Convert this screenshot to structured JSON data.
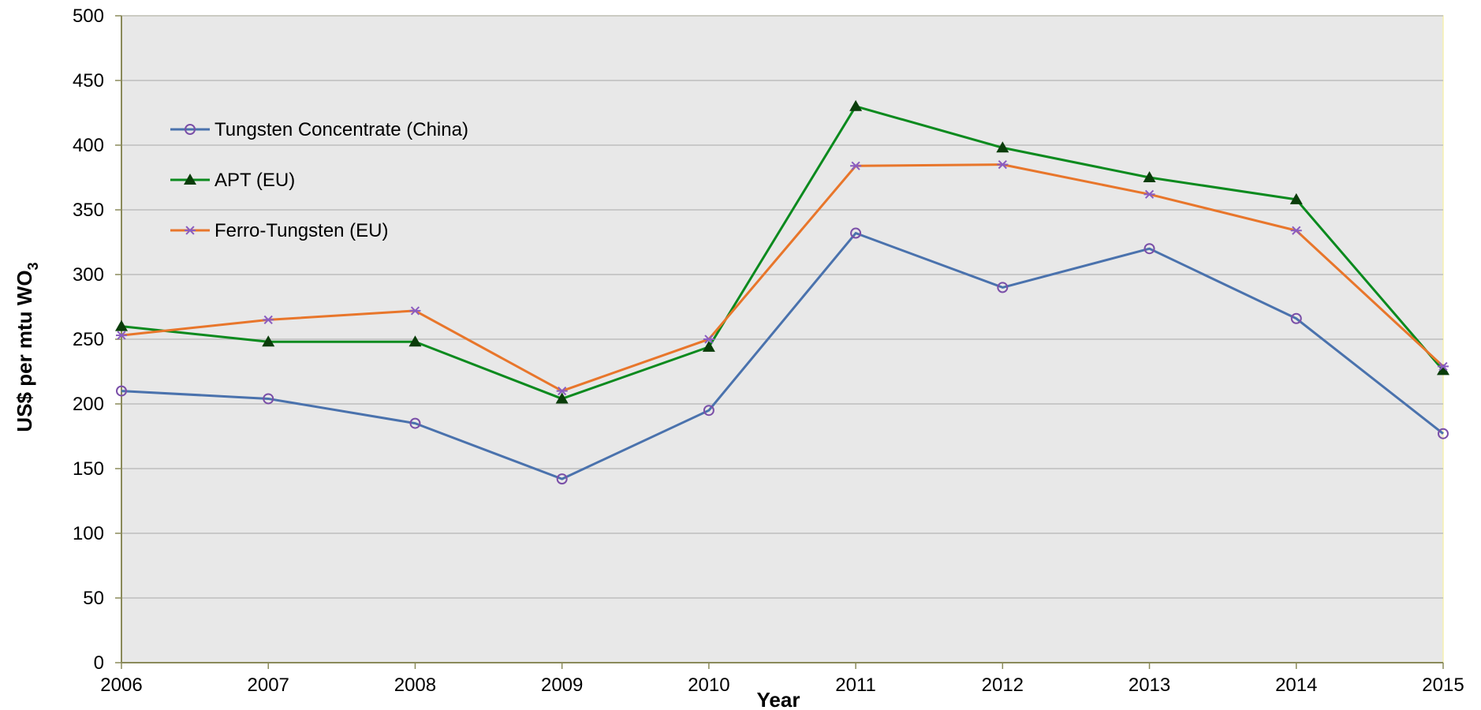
{
  "chart_data": {
    "type": "line",
    "title": "",
    "xlabel": "Year",
    "ylabel": "US$ per mtu WO",
    "ylabel_subscript": "3",
    "categories": [
      "2006",
      "2007",
      "2008",
      "2009",
      "2010",
      "2011",
      "2012",
      "2013",
      "2014",
      "2015"
    ],
    "ylim": [
      0,
      500
    ],
    "yticks": [
      0,
      50,
      100,
      150,
      200,
      250,
      300,
      350,
      400,
      450,
      500
    ],
    "grid": true,
    "legend_position": "top-left",
    "series": [
      {
        "name": "Tungsten Concentrate (China)",
        "color": "#4a72ad",
        "marker": "circle",
        "marker_color": "#7a4fa8",
        "values": [
          210,
          204,
          185,
          142,
          195,
          332,
          290,
          320,
          266,
          177
        ]
      },
      {
        "name": "APT (EU)",
        "color": "#0b8a1e",
        "marker": "triangle",
        "marker_color": "#0a3d0a",
        "values": [
          260,
          248,
          248,
          204,
          244,
          430,
          398,
          375,
          358,
          226
        ]
      },
      {
        "name": "Ferro-Tungsten (EU)",
        "color": "#e8762b",
        "marker": "asterisk",
        "marker_color": "#8a5cc0",
        "values": [
          253,
          265,
          272,
          210,
          250,
          384,
          385,
          362,
          334,
          229
        ]
      }
    ],
    "plot_background": "#e8e8e8",
    "grid_color": "#bdbdbd",
    "axis_color": "#8a8a5a"
  }
}
